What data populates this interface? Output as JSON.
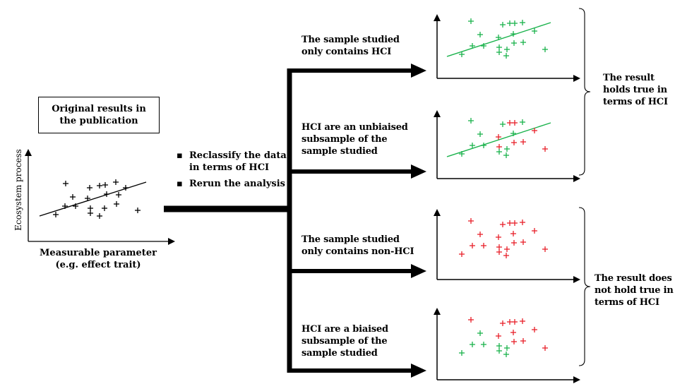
{
  "original_box": {
    "lines": [
      "Original results in",
      "the publication"
    ]
  },
  "original_plot": {
    "y_label": "Ecosystem process",
    "x_label_lines": [
      "Measurable parameter",
      "(e.g. effect trait)"
    ]
  },
  "steps": {
    "bullet_glyph": "▪",
    "items": [
      {
        "lines": [
          "Reclassify the data",
          "in terms of HCI"
        ]
      },
      {
        "lines": [
          "Rerun the analysis"
        ]
      }
    ]
  },
  "scenarios": [
    {
      "lines": [
        "The sample studied",
        "only contains HCI"
      ]
    },
    {
      "lines": [
        "HCI are an unbiaised",
        "subsample of the",
        "sample studied"
      ]
    },
    {
      "lines": [
        "The sample studied",
        "only contains non-HCI"
      ]
    },
    {
      "lines": [
        "HCI are a biaised",
        "subsample of the",
        "sample studied"
      ]
    }
  ],
  "outcomes": [
    {
      "lines": [
        "The result",
        "holds true in",
        "terms of HCI"
      ]
    },
    {
      "lines": [
        "The result does",
        "not hold true in",
        "terms of HCI"
      ]
    }
  ],
  "colors": {
    "hci": "#19b24b",
    "non_hci": "#e8202a",
    "neutral": "#000000"
  }
}
